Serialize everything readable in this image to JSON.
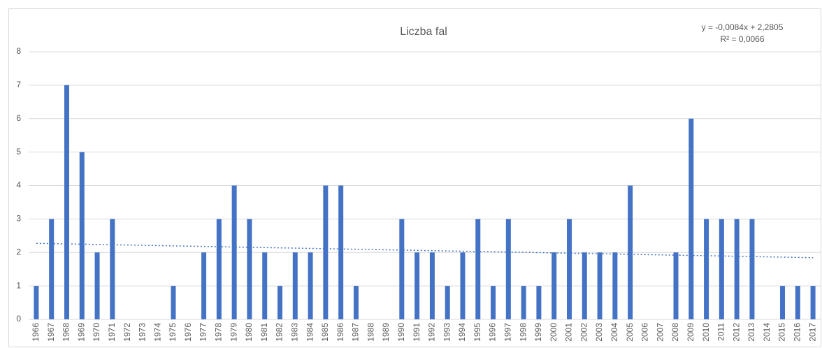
{
  "chart_data": {
    "type": "bar",
    "title": "Liczba fal",
    "annotations": [
      "y = -0,0084x + 2,2805",
      "R² = 0,0066"
    ],
    "categories": [
      "1966",
      "1967",
      "1968",
      "1969",
      "1970",
      "1971",
      "1972",
      "1973",
      "1974",
      "1975",
      "1976",
      "1977",
      "1978",
      "1979",
      "1980",
      "1981",
      "1982",
      "1983",
      "1984",
      "1985",
      "1986",
      "1987",
      "1988",
      "1989",
      "1990",
      "1991",
      "1992",
      "1993",
      "1994",
      "1995",
      "1996",
      "1997",
      "1998",
      "1999",
      "2000",
      "2001",
      "2002",
      "2003",
      "2004",
      "2005",
      "2006",
      "2007",
      "2008",
      "2009",
      "2010",
      "2011",
      "2012",
      "2013",
      "2014",
      "2015",
      "2016",
      "2017"
    ],
    "values": [
      1,
      3,
      7,
      5,
      2,
      3,
      0,
      0,
      0,
      1,
      0,
      2,
      3,
      4,
      3,
      2,
      1,
      2,
      2,
      4,
      4,
      1,
      0,
      0,
      3,
      2,
      2,
      1,
      2,
      3,
      1,
      3,
      1,
      1,
      2,
      3,
      2,
      2,
      2,
      4,
      0,
      0,
      2,
      6,
      3,
      3,
      3,
      3,
      0,
      1,
      1,
      1
    ],
    "color": "#4472c4",
    "trendline_color": "#4472c4",
    "ylim": [
      0,
      8
    ],
    "yticks": [
      0,
      1,
      2,
      3,
      4,
      5,
      6,
      7,
      8
    ],
    "grid": true
  }
}
